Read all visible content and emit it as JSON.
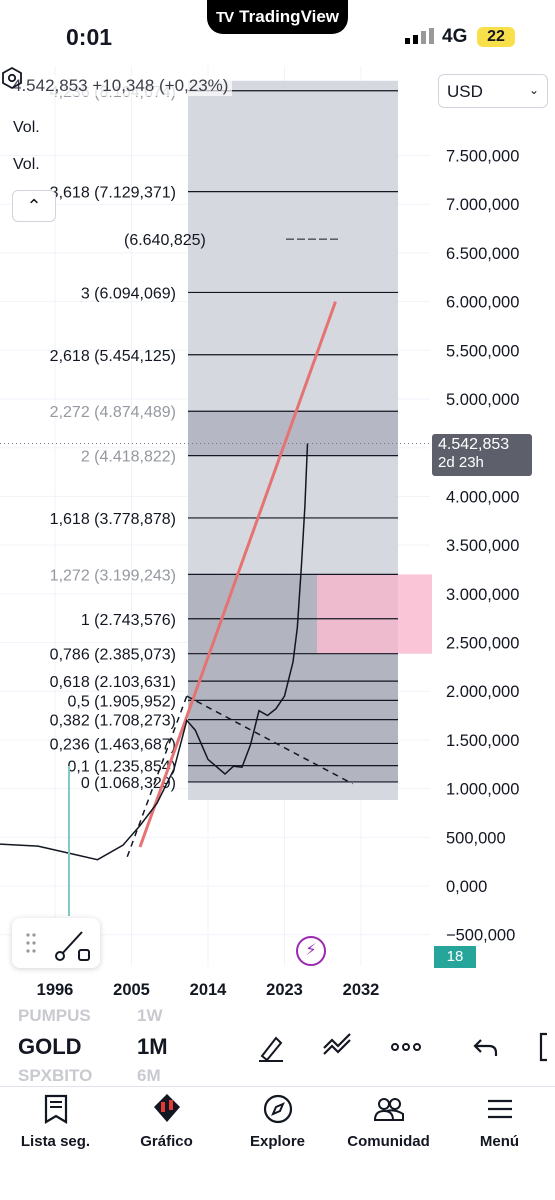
{
  "status_bar": {
    "time": "0:01",
    "app_pill": "TradingView",
    "network": "4G",
    "battery": "22"
  },
  "chart_header": {
    "price_line": "4.542,853  +10,348 (+0,23%)",
    "volume_label_1": "Vol.",
    "volume_label_2": "Vol.",
    "currency": "USD"
  },
  "current_price_tag": {
    "price": "4.542,853",
    "countdown": "2d 23h"
  },
  "volume_tag": "18",
  "chart_data": {
    "type": "line",
    "title": "",
    "symbol": "GOLD",
    "interval": "1M",
    "y_axis": {
      "range": [
        -600000,
        8300000
      ],
      "ticks": [
        "7.500,000",
        "7.000,000",
        "6.500,000",
        "6.000,000",
        "5.500,000",
        "5.000,000",
        "4.500,000",
        "4.000,000",
        "3.500,000",
        "3.000,000",
        "2.500,000",
        "2.000,000",
        "1.500,000",
        "1.000,000",
        "500,000",
        "0,000",
        "−500,000"
      ],
      "tick_values": [
        7500000,
        7000000,
        6500000,
        6000000,
        5500000,
        5000000,
        4500000,
        4000000,
        3500000,
        3000000,
        2500000,
        2000000,
        1500000,
        1000000,
        500000,
        0,
        -500000
      ]
    },
    "x_axis": {
      "ticks": [
        "1996",
        "2005",
        "2014",
        "2023",
        "2032"
      ],
      "tick_values": [
        1996,
        2005,
        2014,
        2023,
        2032
      ]
    },
    "fib_levels": [
      {
        "label": "4,236 (8.164,674)",
        "value": 8164674,
        "faded": true
      },
      {
        "label": "3,618 (7.129,371)",
        "value": 7129371,
        "faded": false
      },
      {
        "label": "3 (6.094,069)",
        "value": 6094069,
        "faded": false
      },
      {
        "label": "2,618 (5.454,125)",
        "value": 5454125,
        "faded": false
      },
      {
        "label": "2,272 (4.874,489)",
        "value": 4874489,
        "faded": true
      },
      {
        "label": "2 (4.418,822)",
        "value": 4418822,
        "faded": true
      },
      {
        "label": "1,618 (3.778,878)",
        "value": 3778878,
        "faded": false
      },
      {
        "label": "1,272 (3.199,243)",
        "value": 3199243,
        "faded": true
      },
      {
        "label": "1 (2.743,576)",
        "value": 2743576,
        "faded": false
      },
      {
        "label": "0,786 (2.385,073)",
        "value": 2385073,
        "faded": false
      },
      {
        "label": "0,618 (2.103,631)",
        "value": 2103631,
        "faded": false
      },
      {
        "label": "0,5 (1.905,952)",
        "value": 1905952,
        "faded": false
      },
      {
        "label": "0,382 (1.708,273)",
        "value": 1708273,
        "faded": false
      },
      {
        "label": "0,236 (1.463,687)",
        "value": 1463687,
        "faded": false
      },
      {
        "label": "0,1 (1.235,854)",
        "value": 1235854,
        "faded": false
      },
      {
        "label": "0 (1.068,329)",
        "value": 1068329,
        "faded": false
      }
    ],
    "overlapping_label": "(6.640,825)",
    "series": [
      {
        "x": [
          1990,
          1994,
          1998,
          2001,
          2004,
          2006,
          2008,
          2010,
          2011.5,
          2012.5,
          2014,
          2016,
          2017,
          2018,
          2019,
          2020,
          2021,
          2022,
          2023,
          2024,
          2024.5,
          2025,
          2025.4,
          2025.7
        ],
        "y": [
          430000,
          410000,
          330000,
          270000,
          420000,
          620000,
          850000,
          1200000,
          1700000,
          1600000,
          1300000,
          1150000,
          1230000,
          1220000,
          1450000,
          1800000,
          1750000,
          1820000,
          1950000,
          2300000,
          2650000,
          3300000,
          3900000,
          4542853
        ]
      }
    ],
    "trendline": {
      "x": [
        2006,
        2029
      ],
      "y": [
        400000,
        6000000
      ]
    },
    "dashed_lines": [
      {
        "x": [
          2004.5,
          2011.5
        ],
        "y": [
          300000,
          1950000
        ]
      },
      {
        "x": [
          2011.5,
          2031
        ],
        "y": [
          1950000,
          1050000
        ]
      }
    ]
  },
  "toolbar": {
    "ghost_symbol_top": "PUMPUS",
    "ghost_interval_top": "1W",
    "symbol": "GOLD",
    "interval": "1M",
    "ghost_symbol_bottom": "SPXBITO",
    "ghost_interval_bottom": "6M"
  },
  "bottom_nav": [
    {
      "label": "Lista seg.",
      "icon": "watchlist-icon"
    },
    {
      "label": "Gráfico",
      "icon": "chart-icon"
    },
    {
      "label": "Explore",
      "icon": "compass-icon"
    },
    {
      "label": "Comunidad",
      "icon": "community-icon"
    },
    {
      "label": "Menú",
      "icon": "menu-icon"
    }
  ]
}
